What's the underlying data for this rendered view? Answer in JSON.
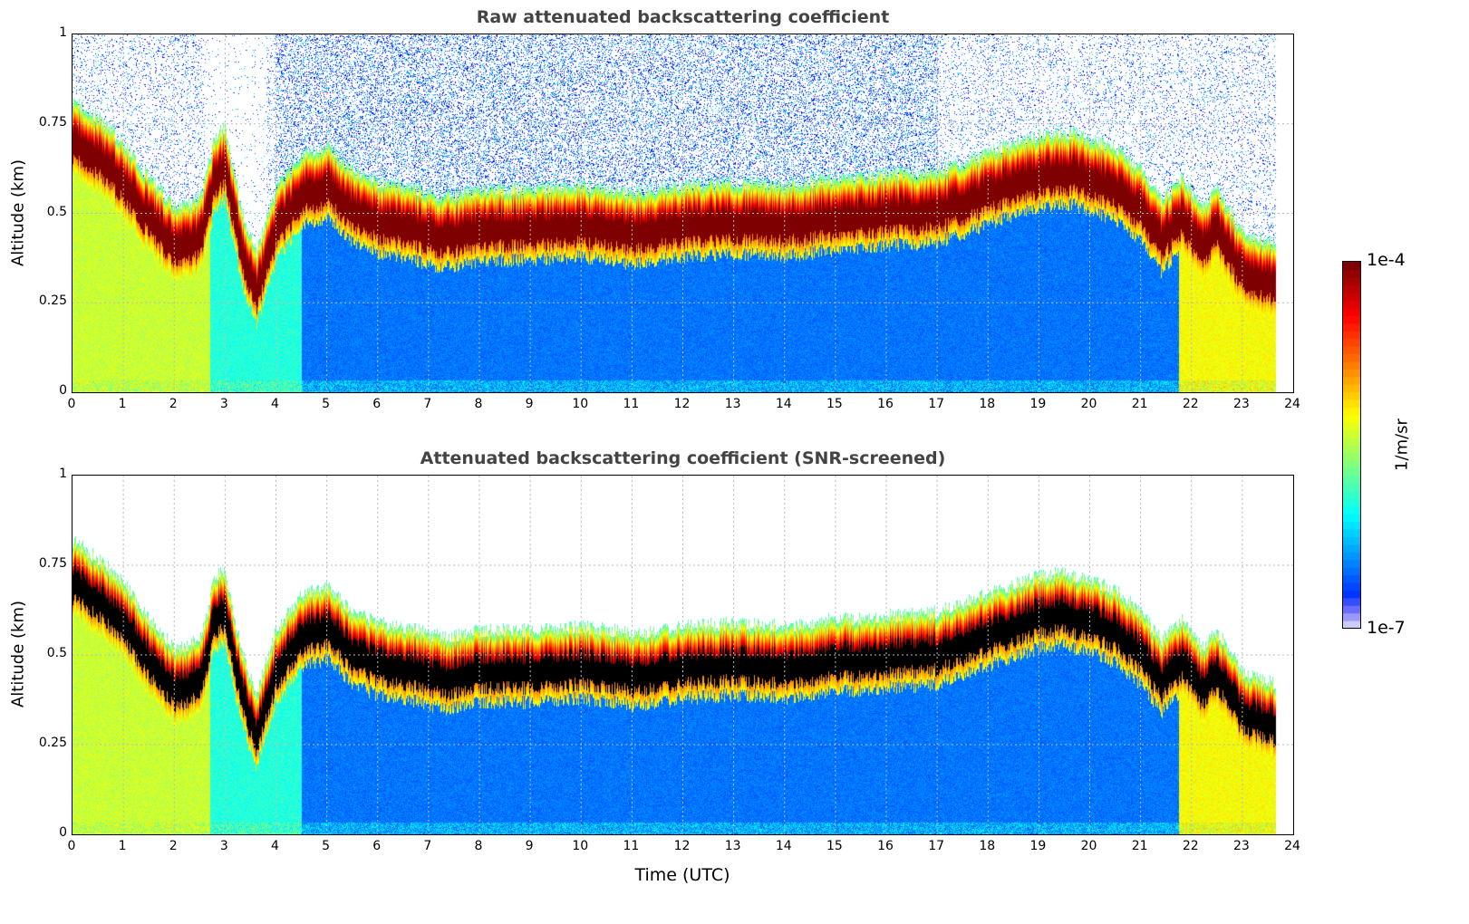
{
  "chart_data": [
    {
      "type": "heatmap",
      "title": "Raw attenuated backscattering coefficient",
      "xlabel": "",
      "ylabel": "Altitude (km)",
      "xlim": [
        0,
        24
      ],
      "ylim": [
        0,
        1
      ],
      "xticks": [
        "0",
        "1",
        "2",
        "3",
        "4",
        "5",
        "6",
        "7",
        "8",
        "9",
        "10",
        "11",
        "12",
        "13",
        "14",
        "15",
        "16",
        "17",
        "18",
        "19",
        "20",
        "21",
        "22",
        "23",
        "24"
      ],
      "yticks": [
        "0",
        "0.25",
        "0.5",
        "0.75",
        "1"
      ],
      "grid": true,
      "screened": false
    },
    {
      "type": "heatmap",
      "title": "Attenuated backscattering coefficient (SNR-screened)",
      "xlabel": "Time (UTC)",
      "ylabel": "Altitude (km)",
      "xlim": [
        0,
        24
      ],
      "ylim": [
        0,
        1
      ],
      "xticks": [
        "0",
        "1",
        "2",
        "3",
        "4",
        "5",
        "6",
        "7",
        "8",
        "9",
        "10",
        "11",
        "12",
        "13",
        "14",
        "15",
        "16",
        "17",
        "18",
        "19",
        "20",
        "21",
        "22",
        "23",
        "24"
      ],
      "yticks": [
        "0",
        "0.25",
        "0.5",
        "0.75",
        "1"
      ],
      "grid": true,
      "screened": true
    }
  ],
  "layer_profile": {
    "time_utc": [
      0,
      0.5,
      1,
      1.5,
      2,
      2.5,
      2.8,
      3,
      3.3,
      3.6,
      4,
      4.5,
      5,
      5.5,
      6,
      6.5,
      7,
      7.3,
      8,
      9,
      10,
      11,
      12,
      13,
      14,
      15,
      16,
      17,
      18,
      19,
      19.5,
      20,
      20.5,
      21,
      21.4,
      21.8,
      22.2,
      22.5,
      23,
      23.6
    ],
    "layer_altitude_km": [
      0.7,
      0.65,
      0.58,
      0.48,
      0.4,
      0.42,
      0.6,
      0.62,
      0.4,
      0.27,
      0.45,
      0.55,
      0.57,
      0.5,
      0.47,
      0.46,
      0.44,
      0.43,
      0.45,
      0.45,
      0.46,
      0.44,
      0.46,
      0.47,
      0.46,
      0.48,
      0.49,
      0.5,
      0.55,
      0.6,
      0.61,
      0.59,
      0.56,
      0.5,
      0.42,
      0.48,
      0.4,
      0.45,
      0.33,
      0.3
    ],
    "data_end_utc": 23.65
  },
  "colorbar": {
    "max_label": "1e-4",
    "min_label": "1e-7",
    "label": "1/m/sr",
    "log_min": -7,
    "log_max": -4
  }
}
